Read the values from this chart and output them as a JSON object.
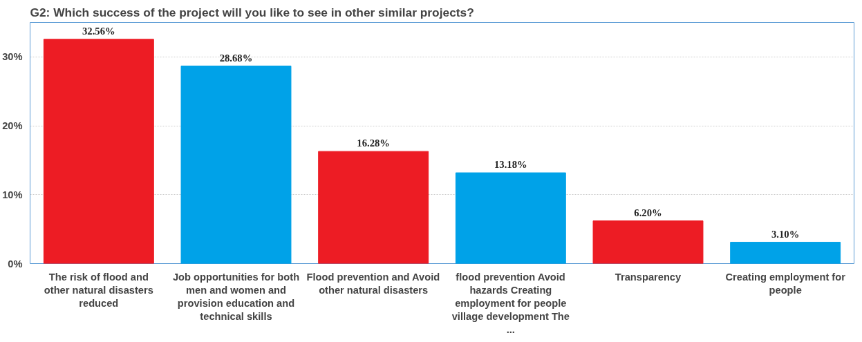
{
  "chart_data": {
    "type": "bar",
    "title": "G2: Which success of the project will you like to see in other similar projects?",
    "categories": [
      "The risk of flood and other natural disasters reduced",
      "Job opportunities for both men and women and provision education and technical skills",
      "Flood prevention and Avoid other natural disasters",
      "flood prevention Avoid hazards Creating employment for people village development The ...",
      "Transparency",
      "Creating employment for people"
    ],
    "values": [
      32.56,
      28.68,
      16.28,
      13.18,
      6.2,
      3.1
    ],
    "colors": [
      "#ed1c24",
      "#00a2e8",
      "#ed1c24",
      "#00a2e8",
      "#ed1c24",
      "#00a2e8"
    ],
    "value_labels": [
      "32.56%",
      "28.68%",
      "16.28%",
      "13.18%",
      "6.20%",
      "3.10%"
    ],
    "ylim": [
      0,
      35
    ],
    "yticks": [
      {
        "value": 0,
        "label": "0%"
      },
      {
        "value": 10,
        "label": "10%"
      },
      {
        "value": 20,
        "label": "20%"
      },
      {
        "value": 30,
        "label": "30%"
      }
    ],
    "grid": "y"
  }
}
